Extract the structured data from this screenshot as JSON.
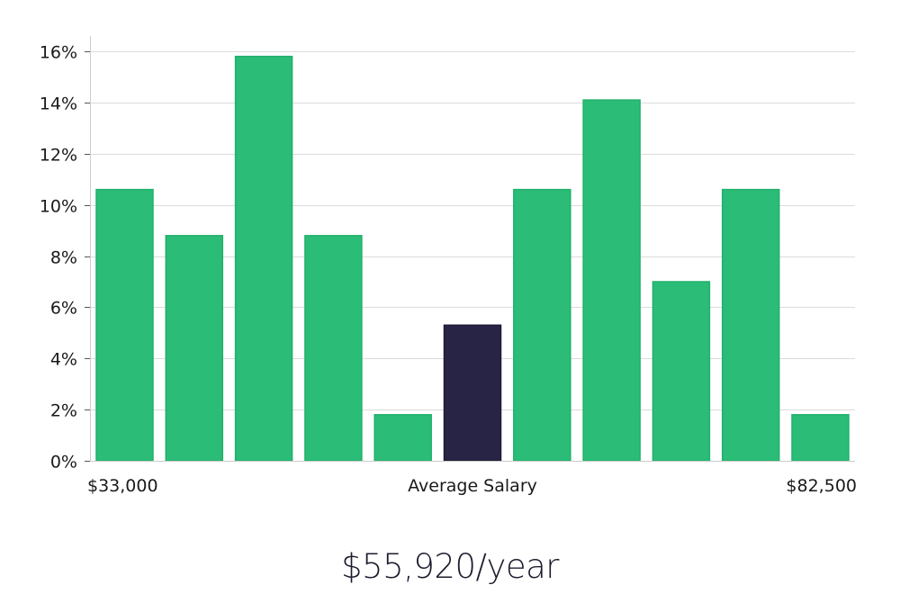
{
  "chart_data": {
    "type": "bar",
    "values": [
      10.6,
      8.8,
      15.8,
      8.8,
      1.8,
      5.3,
      10.6,
      14.1,
      7.0,
      10.6,
      1.8
    ],
    "highlight_index": 5,
    "ylim": [
      0,
      16.6
    ],
    "yticks": [
      0,
      2,
      4,
      6,
      8,
      10,
      12,
      14,
      16
    ],
    "ytick_labels": [
      "0%",
      "2%",
      "4%",
      "6%",
      "8%",
      "10%",
      "12%",
      "14%",
      "16%"
    ],
    "xlabel_min": "$33,000",
    "xlabel_mid": "Average Salary",
    "xlabel_max": "$82,500",
    "grid": true,
    "colors": {
      "bar": "#2bbd77",
      "bar_stroke": "#22b06c",
      "highlight": "#282445",
      "grid": "#dcdcdc",
      "axis": "#cccccc",
      "tick_text": "#1a1a1a"
    }
  },
  "salary": {
    "text": "$55,920/year"
  }
}
